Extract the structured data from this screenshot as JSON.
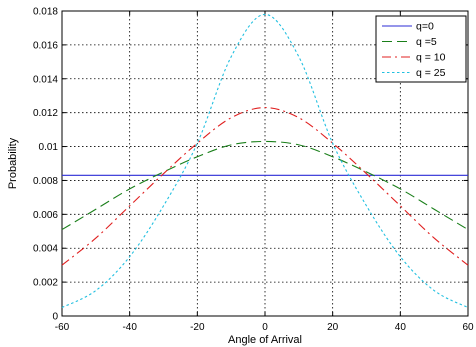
{
  "chart_data": {
    "type": "line",
    "title": "",
    "xlabel": "Angle of Arrival",
    "ylabel": "Probability",
    "xlim": [
      -60,
      60
    ],
    "ylim": [
      0,
      0.018
    ],
    "xticks": [
      "-60",
      "-40",
      "-20",
      "0",
      "20",
      "40",
      "60"
    ],
    "yticks": [
      "0",
      "0.002",
      "0.004",
      "0.006",
      "0.008",
      "0.01",
      "0.012",
      "0.014",
      "0.016",
      "0.018"
    ],
    "grid": true,
    "legend_position": "top-right",
    "x": [
      -60,
      -50,
      -40,
      -30,
      -20,
      -10,
      0,
      10,
      20,
      30,
      40,
      50,
      60
    ],
    "series": [
      {
        "name": "q=0",
        "color": "#2b2bd6",
        "dash": "solid",
        "values": [
          0.0083,
          0.0083,
          0.0083,
          0.0083,
          0.0083,
          0.0083,
          0.0083,
          0.0083,
          0.0083,
          0.0083,
          0.0083,
          0.0083,
          0.0083
        ]
      },
      {
        "name": "q =5",
        "color": "#1a7f1a",
        "dash": "dashed",
        "values": [
          0.0051,
          0.0063,
          0.0075,
          0.0085,
          0.0094,
          0.0101,
          0.0103,
          0.0101,
          0.0094,
          0.0085,
          0.0075,
          0.0063,
          0.0051
        ]
      },
      {
        "name": "q = 10",
        "color": "#e02020",
        "dash": "dashdot",
        "values": [
          0.003,
          0.0046,
          0.0065,
          0.0084,
          0.0102,
          0.0117,
          0.0123,
          0.0117,
          0.0102,
          0.0084,
          0.0065,
          0.0046,
          0.003
        ]
      },
      {
        "name": "q = 25",
        "color": "#22c0e0",
        "dash": "dotted",
        "values": [
          0.0005,
          0.0015,
          0.0035,
          0.0065,
          0.0102,
          0.0153,
          0.0178,
          0.0153,
          0.0102,
          0.0065,
          0.0035,
          0.0015,
          0.0005
        ]
      }
    ]
  }
}
